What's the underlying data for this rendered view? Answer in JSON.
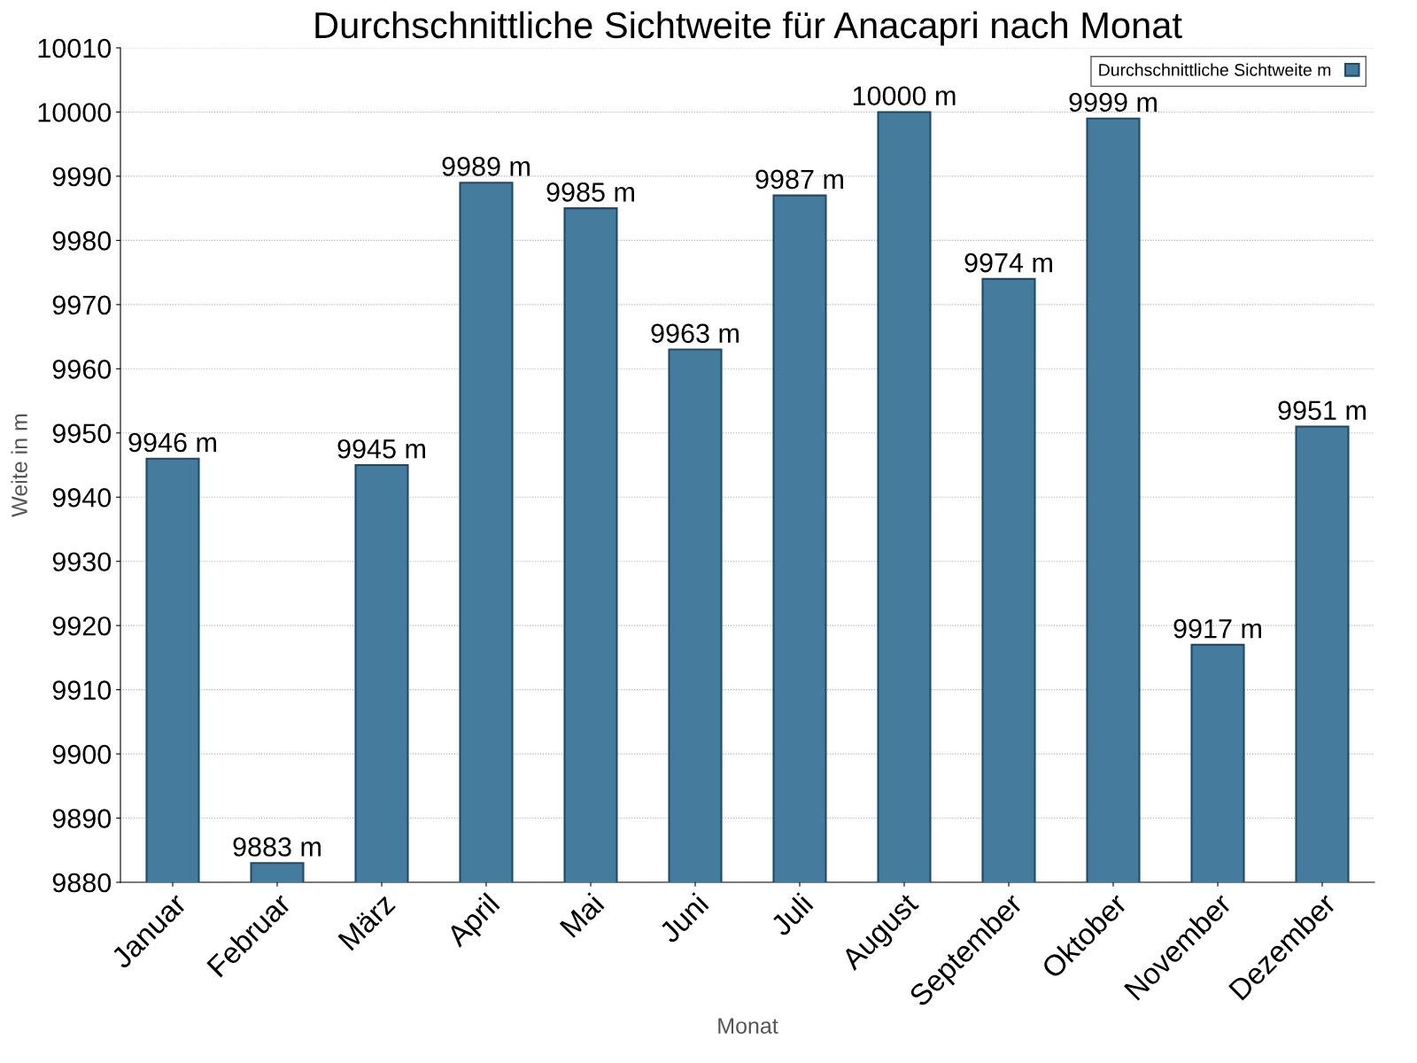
{
  "chart_data": {
    "type": "bar",
    "title": "Durchschnittliche Sichtweite für Anacapri nach Monat",
    "xlabel": "Monat",
    "ylabel": "Weite in m",
    "categories": [
      "Januar",
      "Februar",
      "März",
      "April",
      "Mai",
      "Juni",
      "Juli",
      "August",
      "September",
      "Oktober",
      "November",
      "Dezember"
    ],
    "series": [
      {
        "name": "Durchschnittliche Sichtweite m",
        "color": "#457b9d",
        "values": [
          9946,
          9883,
          9945,
          9989,
          9985,
          9963,
          9987,
          10000,
          9974,
          9999,
          9917,
          9951
        ],
        "value_labels": [
          "9946 m",
          "9883 m",
          "9945 m",
          "9989 m",
          "9985 m",
          "9963 m",
          "9987 m",
          "10000 m",
          "9974 m",
          "9999 m",
          "9917 m",
          "9951 m"
        ]
      }
    ],
    "ylim": [
      9880,
      10010
    ],
    "yticks": [
      9880,
      9890,
      9900,
      9910,
      9920,
      9930,
      9940,
      9950,
      9960,
      9970,
      9980,
      9990,
      10000,
      10010
    ],
    "grid": "y",
    "legend": "top right"
  }
}
